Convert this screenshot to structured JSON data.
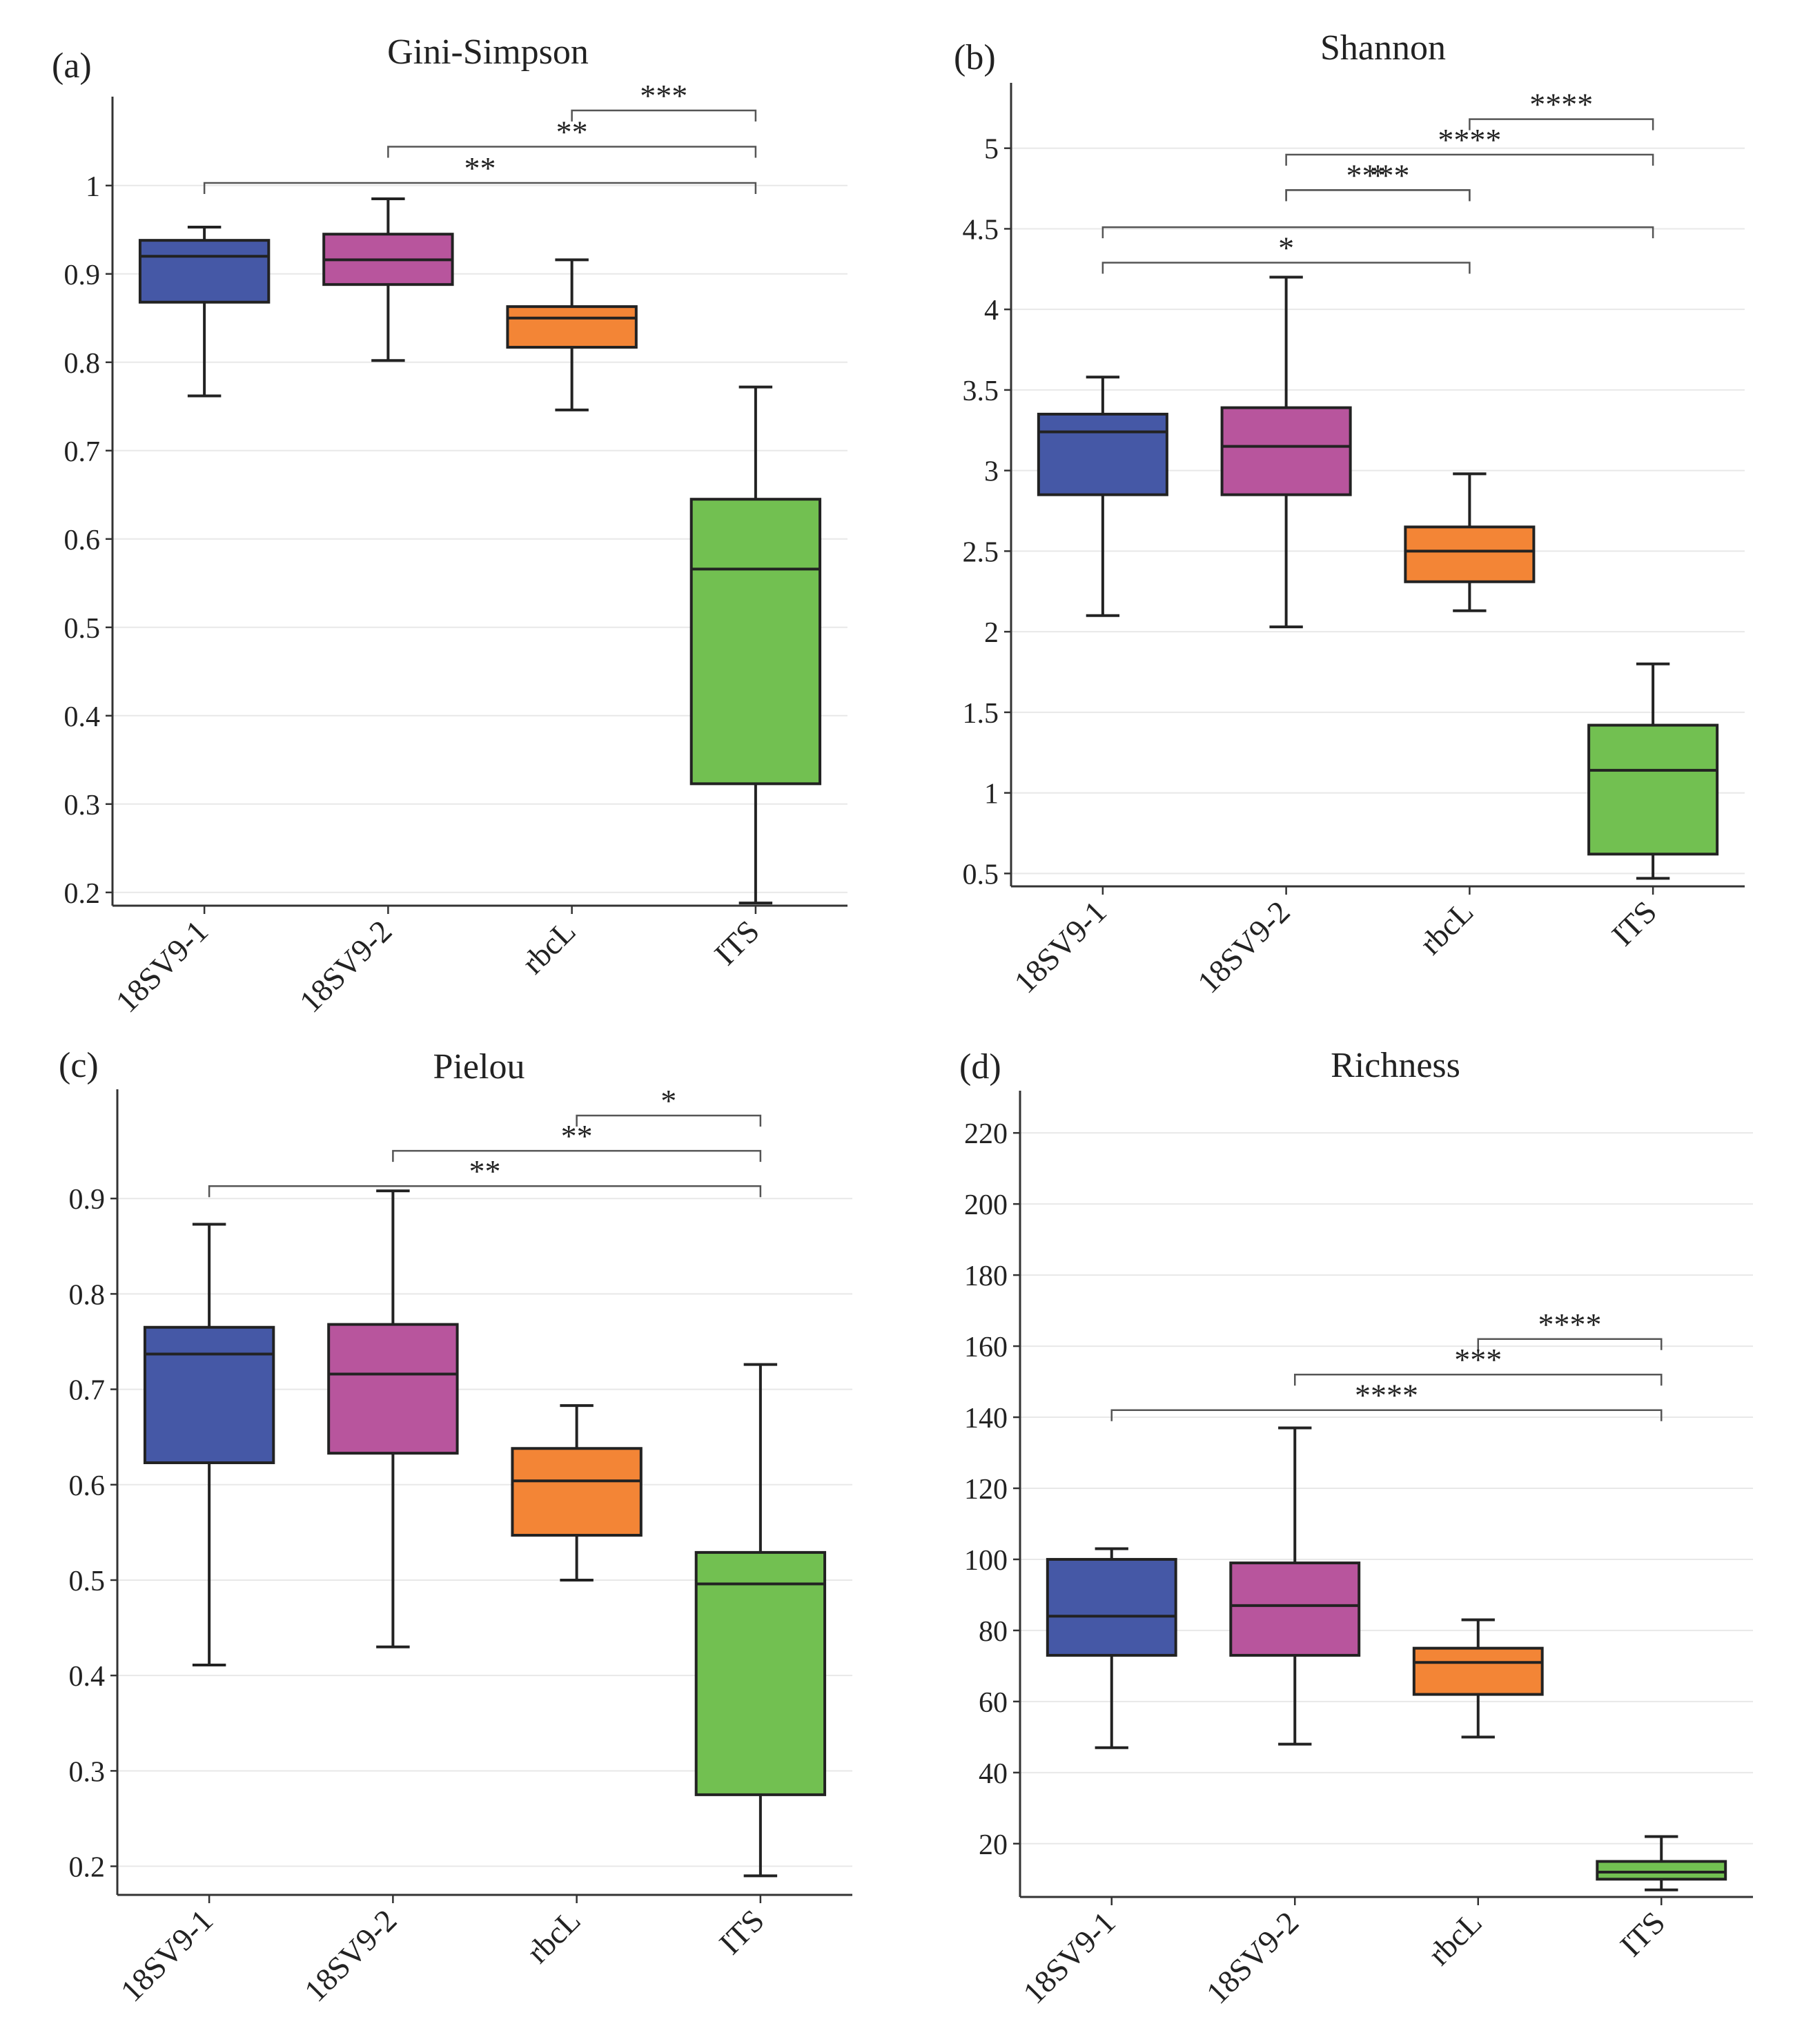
{
  "chart_data": [
    {
      "panel_label": "(a)",
      "title": "Gini-Simpson",
      "type": "box",
      "categories": [
        "18SV9-1",
        "18SV9-2",
        "rbcL",
        "ITS"
      ],
      "yticks": [
        "0.2",
        "0.3",
        "0.4",
        "0.5",
        "0.6",
        "0.7",
        "0.8",
        "0.9",
        "1"
      ],
      "ylim": [
        0.185,
        1.085
      ],
      "boxes": [
        {
          "min": 0.762,
          "q1": 0.868,
          "median": 0.92,
          "q3": 0.938,
          "max": 0.953
        },
        {
          "min": 0.802,
          "q1": 0.888,
          "median": 0.916,
          "q3": 0.945,
          "max": 0.985
        },
        {
          "min": 0.746,
          "q1": 0.817,
          "median": 0.85,
          "q3": 0.863,
          "max": 0.916
        },
        {
          "min": 0.188,
          "q1": 0.323,
          "median": 0.566,
          "q3": 0.645,
          "max": 0.772
        }
      ],
      "brackets": [
        {
          "from": 2,
          "to": 3,
          "label": "***",
          "y": 1.085
        },
        {
          "from": 1,
          "to": 3,
          "label": "**",
          "y": 1.044
        },
        {
          "from": 0,
          "to": 3,
          "label": "**",
          "y": 1.003
        }
      ]
    },
    {
      "panel_label": "(b)",
      "title": "Shannon",
      "type": "box",
      "categories": [
        "18SV9-1",
        "18SV9-2",
        "rbcL",
        "ITS"
      ],
      "yticks": [
        "0.5",
        "1",
        "1.5",
        "2",
        "2.5",
        "3",
        "3.5",
        "4",
        "4.5",
        "5"
      ],
      "ylim": [
        0.42,
        5.32
      ],
      "boxes": [
        {
          "min": 2.1,
          "q1": 2.85,
          "median": 3.24,
          "q3": 3.35,
          "max": 3.58
        },
        {
          "min": 2.03,
          "q1": 2.85,
          "median": 3.15,
          "q3": 3.39,
          "max": 4.2
        },
        {
          "min": 2.13,
          "q1": 2.31,
          "median": 2.5,
          "q3": 2.65,
          "max": 2.98
        },
        {
          "min": 0.47,
          "q1": 0.62,
          "median": 1.14,
          "q3": 1.42,
          "max": 1.8
        }
      ],
      "brackets": [
        {
          "from": 2,
          "to": 3,
          "label": "****",
          "y": 5.18
        },
        {
          "from": 1,
          "to": 3,
          "label": "****",
          "y": 4.96
        },
        {
          "from": 1,
          "to": 2,
          "label": "*",
          "y": 4.74
        },
        {
          "from": 1,
          "to": 2,
          "label": "****",
          "y": 4.74
        },
        {
          "from": 0,
          "to": 3,
          "label": "",
          "y": 4.51
        },
        {
          "from": 0,
          "to": 2,
          "label": "*",
          "y": 4.29
        }
      ]
    },
    {
      "panel_label": "(c)",
      "title": "Pielou",
      "type": "box",
      "categories": [
        "18SV9-1",
        "18SV9-2",
        "rbcL",
        "ITS"
      ],
      "yticks": [
        "0.2",
        "0.3",
        "0.4",
        "0.5",
        "0.6",
        "0.7",
        "0.8",
        "0.9"
      ],
      "ylim": [
        0.17,
        1.0
      ],
      "boxes": [
        {
          "min": 0.411,
          "q1": 0.623,
          "median": 0.737,
          "q3": 0.765,
          "max": 0.873
        },
        {
          "min": 0.43,
          "q1": 0.633,
          "median": 0.716,
          "q3": 0.768,
          "max": 0.908
        },
        {
          "min": 0.5,
          "q1": 0.547,
          "median": 0.604,
          "q3": 0.638,
          "max": 0.683
        },
        {
          "min": 0.19,
          "q1": 0.275,
          "median": 0.496,
          "q3": 0.529,
          "max": 0.726
        }
      ],
      "brackets": [
        {
          "from": 2,
          "to": 3,
          "label": "*",
          "y": 0.987
        },
        {
          "from": 1,
          "to": 3,
          "label": "**",
          "y": 0.95
        },
        {
          "from": 0,
          "to": 3,
          "label": "**",
          "y": 0.913
        }
      ]
    },
    {
      "panel_label": "(d)",
      "title": "Richness",
      "type": "box",
      "categories": [
        "18SV9-1",
        "18SV9-2",
        "rbcL",
        "ITS"
      ],
      "yticks": [
        "20",
        "40",
        "60",
        "80",
        "100",
        "120",
        "140",
        "160",
        "180",
        "200",
        "220"
      ],
      "ylim": [
        5,
        228
      ],
      "boxes": [
        {
          "min": 47,
          "q1": 73,
          "median": 84,
          "q3": 100,
          "max": 103
        },
        {
          "min": 48,
          "q1": 73,
          "median": 87,
          "q3": 99,
          "max": 137
        },
        {
          "min": 50,
          "q1": 62,
          "median": 71,
          "q3": 75,
          "max": 83
        },
        {
          "min": 7,
          "q1": 10,
          "median": 12,
          "q3": 15,
          "max": 22
        }
      ],
      "brackets": [
        {
          "from": 2,
          "to": 3,
          "label": "****",
          "y": 162
        },
        {
          "from": 1,
          "to": 3,
          "label": "***",
          "y": 152
        },
        {
          "from": 0,
          "to": 3,
          "label": "****",
          "y": 142
        }
      ]
    }
  ],
  "colors": [
    "#4558a6",
    "#b8559d",
    "#f38536",
    "#72c051"
  ],
  "colors_note_free": true
}
